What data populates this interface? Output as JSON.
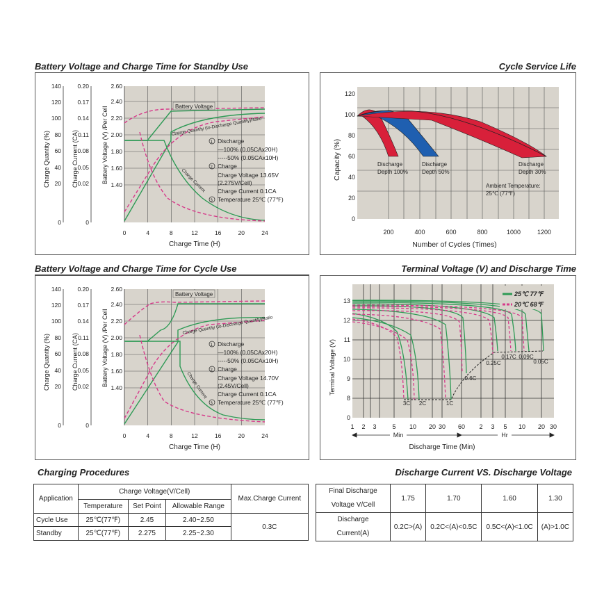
{
  "standby": {
    "title": "Battery Voltage and Charge Time for Standby Use",
    "y1": {
      "label": "Charge Quantity (%)",
      "ticks": [
        "140",
        "120",
        "100",
        "80",
        "60",
        "40",
        "20",
        "0"
      ]
    },
    "y2": {
      "label": "Charge Current (CA)",
      "ticks": [
        "0.20",
        "0.17",
        "0.14",
        "0.11",
        "0.08",
        "0.05",
        "0.02",
        "0"
      ]
    },
    "y3": {
      "label": "Battery Voltage (V) /Per Cell",
      "ticks": [
        "2.60",
        "2.40",
        "2.20",
        "2.00",
        "1.80",
        "1.60",
        "1.40"
      ]
    },
    "x": {
      "label": "Charge Time (H)",
      "ticks": [
        "0",
        "4",
        "8",
        "12",
        "16",
        "20",
        "24"
      ]
    },
    "curve_labels": {
      "voltage": "Battery Voltage",
      "quantity": "Charge Quantity (to-Discharge Quantity)Ratio",
      "current": "Charge Current"
    },
    "notes": {
      "n1": "Discharge",
      "n1a": "—100% (0.05CAx20H)",
      "n1b": "-----50% (0.05CAx10H)",
      "n2": "Charge",
      "n2a": "Charge Voltage 13.65V",
      "n2b": "(2.275V/Cell)",
      "n2c": "Charge Current 0.1CA",
      "n3": "Temperature 25℃ (77℉)"
    }
  },
  "cycle": {
    "title": "Battery Voltage and Charge Time for Cycle Use",
    "y1": {
      "label": "Charge Quantity (%)",
      "ticks": [
        "140",
        "120",
        "100",
        "80",
        "60",
        "40",
        "20",
        "0"
      ]
    },
    "y2": {
      "label": "Charge Current (CA)",
      "ticks": [
        "0.20",
        "0.17",
        "0.14",
        "0.11",
        "0.08",
        "0.05",
        "0.02",
        "0"
      ]
    },
    "y3": {
      "label": "Battery Voltage (V) /Per Cell",
      "ticks": [
        "2.60",
        "2.40",
        "2.20",
        "2.00",
        "1.80",
        "1.60",
        "1.40"
      ]
    },
    "x": {
      "label": "Charge Time (H)",
      "ticks": [
        "0",
        "4",
        "8",
        "12",
        "16",
        "20",
        "24"
      ]
    },
    "curve_labels": {
      "voltage": "Battery Voltage",
      "quantity": "Charge Quantity (to-Discharge Quantity)Ratio",
      "current": "Charge Current"
    },
    "notes": {
      "n1": "Discharge",
      "n1a": "—100% (0.05CAx20H)",
      "n1b": "-----50% (0.05CAx10H)",
      "n2": "Charge",
      "n2a": "Charge Voltage 14.70V",
      "n2b": "(2.45V/Cell)",
      "n2c": "Charge Current 0.1CA",
      "n3": "Temperature 25℃ (77℉)"
    }
  },
  "cycle_life": {
    "title": "Cycle Service Life",
    "ylabel": "Capacity (%)",
    "xlabel": "Number of Cycles (Times)",
    "yticks": [
      "120",
      "100",
      "80",
      "60",
      "40",
      "20",
      "0"
    ],
    "xticks": [
      "200",
      "400",
      "600",
      "800",
      "1000",
      "1200"
    ],
    "depth_labels": [
      {
        "l1": "Discharge",
        "l2": "Depth 100%"
      },
      {
        "l1": "Discharge",
        "l2": "Depth 50%"
      },
      {
        "l1": "Discharge",
        "l2": "Depth 30%"
      }
    ],
    "ambient": {
      "l1": "Ambient Temperature:",
      "l2": "25℃ (77℉)"
    }
  },
  "discharge_time": {
    "title": "Terminal Voltage (V) and Discharge Time",
    "ylabel": "Terminal Voltage (V)",
    "yticks": [
      "13",
      "12",
      "11",
      "10",
      "9",
      "8",
      "0"
    ],
    "xticks": [
      "1",
      "2",
      "3",
      "5",
      "10",
      "20",
      "30",
      "60",
      "2",
      "3",
      "5",
      "10",
      "20",
      "30"
    ],
    "min_label": "Min",
    "hr_label": "Hr",
    "xlabel": "Discharge Time (Min)",
    "legend": {
      "t25": "25℃ 77℉",
      "t20": "20℃ 68℉"
    },
    "curve_labels": [
      "3C",
      "2C",
      "1C",
      "0.6C",
      "0.25C",
      "0.17C",
      "0.09C",
      "0.05C"
    ]
  },
  "charging_procedures": {
    "title": "Charging Procedures",
    "headers": {
      "application": "Application",
      "charge_voltage": "Charge Voltage(V/Cell)",
      "temperature": "Temperature",
      "set_point": "Set Point",
      "range": "Allowable Range",
      "max_current": "Max.Charge Current"
    },
    "rows": [
      {
        "app": "Cycle Use",
        "temp": "25℃(77℉)",
        "set": "2.45",
        "range": "2.40~2.50"
      },
      {
        "app": "Standby",
        "temp": "25℃(77℉)",
        "set": "2.275",
        "range": "2.25~2.30"
      }
    ],
    "max_current": "0.3C"
  },
  "discharge_vs_voltage": {
    "title": "Discharge Current VS. Discharge Voltage",
    "row1_label_1": "Final Discharge",
    "row1_label_2": "Voltage V/Cell",
    "voltages": [
      "1.75",
      "1.70",
      "1.60",
      "1.30"
    ],
    "row2_label_1": "Discharge",
    "row2_label_2": "Current(A)",
    "currents": [
      "0.2C>(A)",
      "0.2C<(A)<0.5C",
      "0.5C<(A)<1.0C",
      "(A)>1.0C"
    ]
  },
  "colors": {
    "green": "#2e9a55",
    "magenta": "#d63a8a",
    "red": "#d8203a",
    "blue": "#1f5fb0",
    "plot_bg": "#d8d4cc"
  }
}
